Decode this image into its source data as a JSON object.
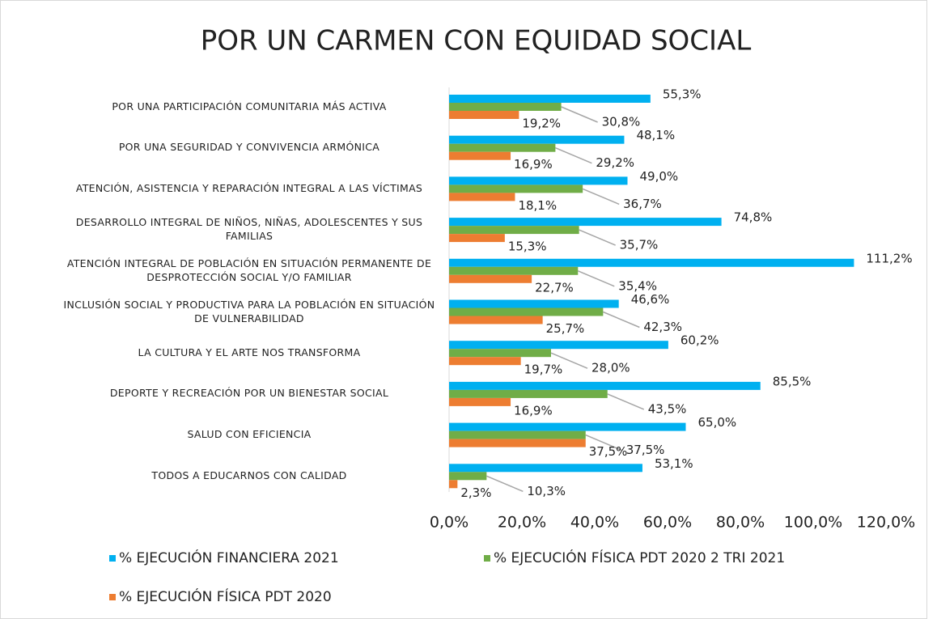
{
  "chart_data": {
    "type": "hbar",
    "title": "POR UN CARMEN CON EQUIDAD SOCIAL",
    "categories": [
      "POR UNA PARTICIPACIÓN COMUNITARIA MÁS ACTIVA",
      "POR UNA SEGURIDAD Y CONVIVENCIA ARMÓNICA",
      "ATENCIÓN, ASISTENCIA Y REPARACIÓN INTEGRAL A LAS VÍCTIMAS",
      "DESARROLLO INTEGRAL DE NIÑOS, NIÑAS, ADOLESCENTES Y SUS FAMILIAS",
      "ATENCIÓN INTEGRAL DE POBLACIÓN EN SITUACIÓN PERMANENTE DE DESPROTECCIÓN SOCIAL Y/O FAMILIAR",
      "INCLUSIÓN SOCIAL Y PRODUCTIVA PARA LA POBLACIÓN EN SITUACIÓN DE VULNERABILIDAD",
      "LA CULTURA Y EL ARTE NOS TRANSFORMA",
      "DEPORTE Y RECREACIÓN POR UN BIENESTAR SOCIAL",
      "SALUD CON EFICIENCIA",
      "TODOS A EDUCARNOS CON CALIDAD"
    ],
    "series": [
      {
        "name": "% EJECUCIÓN FINANCIERA 2021",
        "color": "#00b0f0",
        "values": [
          55.3,
          48.1,
          49.0,
          74.8,
          111.2,
          46.6,
          60.2,
          85.5,
          65.0,
          53.1
        ],
        "value_labels": [
          "55,3%",
          "48,1%",
          "49,0%",
          "74,8%",
          "111,2%",
          "46,6%",
          "60,2%",
          "85,5%",
          "65,0%",
          "53,1%"
        ]
      },
      {
        "name": "% EJECUCIÓN FÍSICA PDT 2020 2 TRI 2021",
        "color": "#70ad47",
        "values": [
          30.8,
          29.2,
          36.7,
          35.7,
          35.4,
          42.3,
          28.0,
          43.5,
          37.5,
          10.3
        ],
        "value_labels": [
          "30,8%",
          "29,2%",
          "36,7%",
          "35,7%",
          "35,4%",
          "42,3%",
          "28,0%",
          "43,5%",
          "37,5%",
          "10,3%"
        ]
      },
      {
        "name": "% EJECUCIÓN FÍSICA PDT 2020",
        "color": "#ed7d31",
        "values": [
          19.2,
          16.9,
          18.1,
          15.3,
          22.7,
          25.7,
          19.7,
          16.9,
          37.5,
          2.3
        ],
        "value_labels": [
          "19,2%",
          "16,9%",
          "18,1%",
          "15,3%",
          "22,7%",
          "25,7%",
          "19,7%",
          "16,9%",
          "37,5%",
          "2,3%"
        ]
      }
    ],
    "xlim": [
      0,
      120
    ],
    "xticks": [
      {
        "value": 0,
        "label": "0,0%"
      },
      {
        "value": 20,
        "label": "20,0%"
      },
      {
        "value": 40,
        "label": "40,0%"
      },
      {
        "value": 60,
        "label": "60,0%"
      },
      {
        "value": 80,
        "label": "80,0%"
      },
      {
        "value": 100,
        "label": "100,0%"
      },
      {
        "value": 120,
        "label": "120,0%"
      }
    ],
    "legend": "bottom"
  }
}
